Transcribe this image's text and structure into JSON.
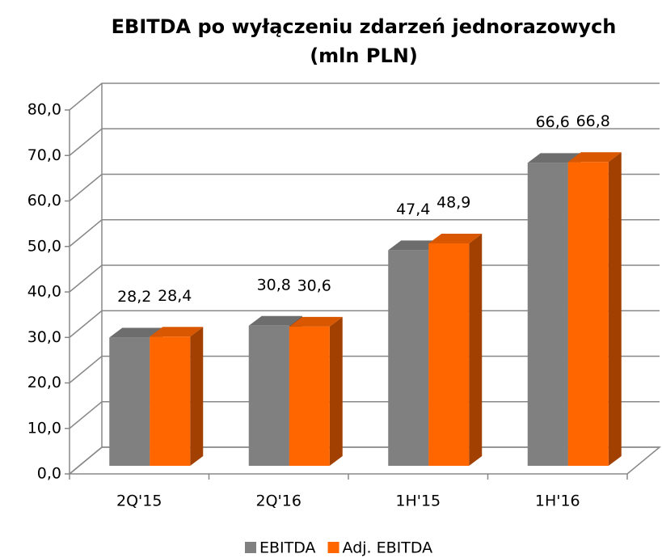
{
  "chart_data": {
    "type": "bar3d",
    "title": [
      "EBITDA po wyłączeniu zdarzeń jednorazowych",
      "(mln PLN)"
    ],
    "categories": [
      "2Q'15",
      "2Q'16",
      "1H'15",
      "1H'16"
    ],
    "series": [
      {
        "name": "EBITDA",
        "color": "#808080",
        "values": [
          28.2,
          30.8,
          47.4,
          66.6
        ],
        "value_labels": [
          "28,2",
          "30,8",
          "47,4",
          "66,6"
        ]
      },
      {
        "name": "Adj. EBITDA",
        "color": "#ff6600",
        "values": [
          28.4,
          30.6,
          48.9,
          66.8
        ],
        "value_labels": [
          "28,4",
          "30,6",
          "48,9",
          "66,8"
        ]
      }
    ],
    "ylim": [
      0,
      80
    ],
    "yticks": [
      {
        "value": 0,
        "label": "0,0"
      },
      {
        "value": 10,
        "label": "10,0"
      },
      {
        "value": 20,
        "label": "20,0"
      },
      {
        "value": 30,
        "label": "30,0"
      },
      {
        "value": 40,
        "label": "40,0"
      },
      {
        "value": 50,
        "label": "50,0"
      },
      {
        "value": 60,
        "label": "60,0"
      },
      {
        "value": 70,
        "label": "70,0"
      },
      {
        "value": 80,
        "label": "80,0"
      }
    ],
    "grid": true,
    "legend": "bottom"
  }
}
